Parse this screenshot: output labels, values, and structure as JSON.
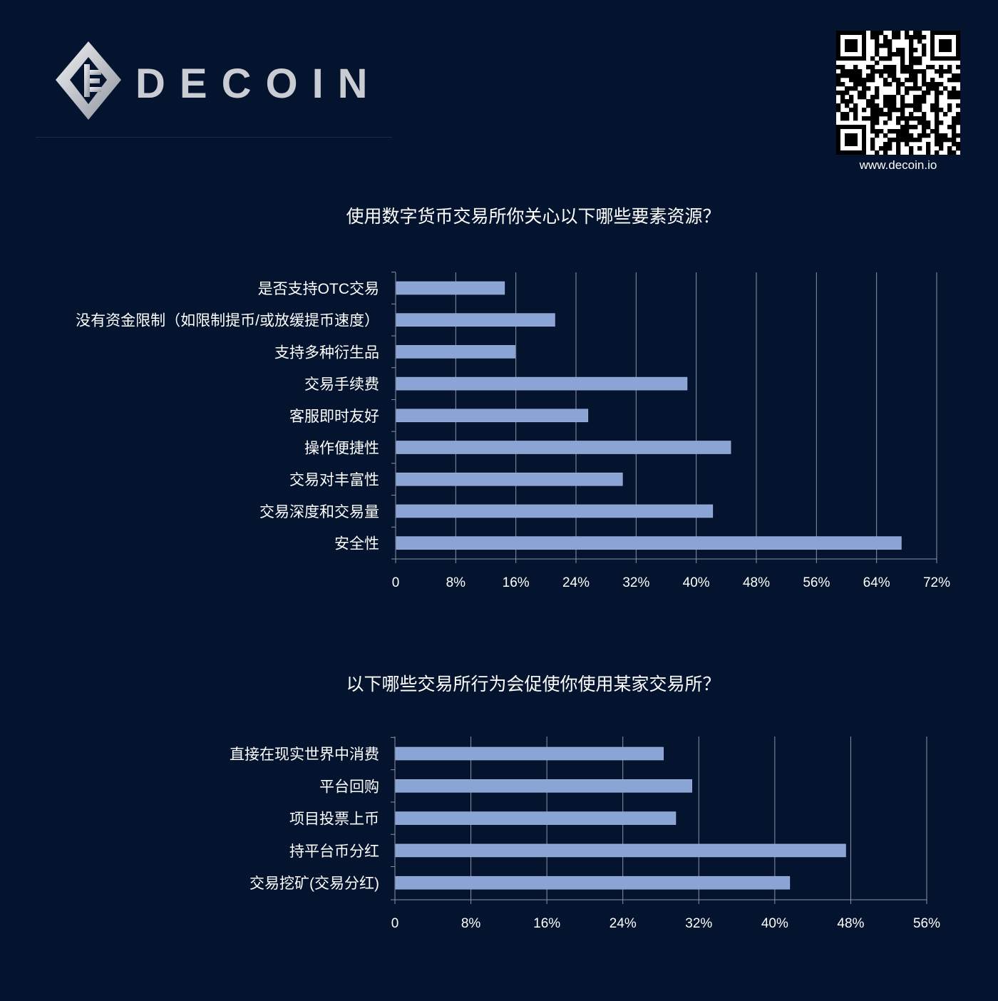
{
  "brand": {
    "name": "DECOIN",
    "url": "www.decoin.io"
  },
  "colors": {
    "background": "#04142e",
    "bar": "#8aa4d6",
    "grid": "#8a93a6"
  },
  "chart_data": [
    {
      "type": "bar",
      "orientation": "horizontal",
      "title": "使用数字货币交易所你关心以下哪些要素资源？",
      "categories": [
        "是否支持OTC交易",
        "没有资金限制（如限制提币/或放缓提币速度）",
        "支持多种衍生品",
        "交易手续费",
        "客服即时友好",
        "操作便捷性",
        "交易对丰富性",
        "交易深度和交易量",
        "安全性"
      ],
      "values": [
        14.4,
        21.1,
        15.8,
        38.7,
        25.5,
        44.5,
        30.1,
        42.1,
        67.2
      ],
      "unit": "%",
      "xlim": [
        0,
        72
      ],
      "ticks": [
        "0",
        "8%",
        "16%",
        "24%",
        "32%",
        "40%",
        "48%",
        "56%",
        "64%",
        "72%"
      ],
      "grid": true
    },
    {
      "type": "bar",
      "orientation": "horizontal",
      "title": "以下哪些交易所行为会促使你使用某家交易所？",
      "categories": [
        "直接在现实世界中消费",
        "平台回购",
        "项目投票上币",
        "持平台币分红",
        "交易挖矿(交易分红)"
      ],
      "values": [
        28.2,
        31.2,
        29.5,
        47.4,
        41.5
      ],
      "unit": "%",
      "xlim": [
        0,
        56
      ],
      "ticks": [
        "0",
        "8%",
        "16%",
        "24%",
        "32%",
        "40%",
        "48%",
        "56%"
      ],
      "grid": true
    }
  ]
}
